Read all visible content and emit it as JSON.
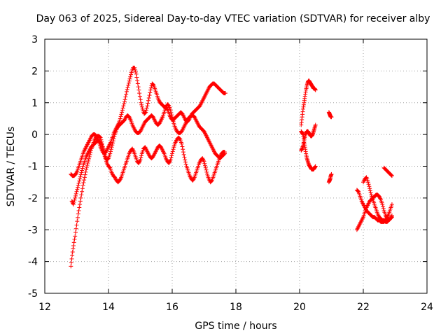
{
  "chart_data": {
    "type": "scatter",
    "title": "Day 063 of 2025, Sidereal Day-to-day VTEC variation (SDTVAR) for receiver alby",
    "xlabel": "GPS time / hours",
    "ylabel": "SDTVAR / TECUs",
    "xlim": [
      12,
      24
    ],
    "ylim": [
      -5,
      3
    ],
    "xticks": [
      12,
      14,
      16,
      18,
      20,
      22,
      24
    ],
    "yticks": [
      -5,
      -4,
      -3,
      -2,
      -1,
      0,
      1,
      2,
      3
    ],
    "grid": true,
    "marker": "+",
    "series_color": "#ff0000",
    "series": [
      {
        "name": "SDTVAR",
        "segments": [
          {
            "x": [
              12.82,
              12.86,
              12.9,
              12.95,
              13.0,
              13.05,
              13.1,
              13.15,
              13.2,
              13.25,
              13.3,
              13.35,
              13.4,
              13.45,
              13.5,
              13.55,
              13.6,
              13.65,
              13.7,
              13.75,
              13.8,
              13.85,
              13.9,
              13.95,
              14.0,
              14.05,
              14.1,
              14.15,
              14.2,
              14.25,
              14.3,
              14.35,
              14.4,
              14.45,
              14.5,
              14.55,
              14.6,
              14.65,
              14.7,
              14.75,
              14.8,
              14.85,
              14.9,
              14.95,
              15.0,
              15.05,
              15.1,
              15.15,
              15.2,
              15.25,
              15.3,
              15.35,
              15.4,
              15.45,
              15.5,
              15.55,
              15.6,
              15.65,
              15.7,
              15.75,
              15.8,
              15.85,
              15.9,
              15.95,
              16.0,
              16.05,
              16.1,
              16.15,
              16.2,
              16.25,
              16.3,
              16.35,
              16.4,
              16.45,
              16.5,
              16.55,
              16.6,
              16.65,
              16.7,
              16.75,
              16.8,
              16.85,
              16.9,
              16.95,
              17.0,
              17.05,
              17.1,
              17.15,
              17.2,
              17.25,
              17.3,
              17.35,
              17.4,
              17.45,
              17.5,
              17.55,
              17.6,
              17.65
            ],
            "y": [
              -4.15,
              -3.8,
              -3.5,
              -3.2,
              -2.85,
              -2.5,
              -2.2,
              -1.9,
              -1.6,
              -1.35,
              -1.1,
              -0.9,
              -0.7,
              -0.5,
              -0.35,
              -0.2,
              -0.1,
              -0.05,
              -0.05,
              -0.1,
              -0.3,
              -0.55,
              -0.75,
              -0.9,
              -1.0,
              -1.05,
              -1.2,
              -1.3,
              -1.35,
              -1.45,
              -1.5,
              -1.45,
              -1.35,
              -1.2,
              -1.05,
              -0.9,
              -0.75,
              -0.6,
              -0.5,
              -0.45,
              -0.55,
              -0.7,
              -0.85,
              -0.9,
              -0.8,
              -0.6,
              -0.45,
              -0.4,
              -0.5,
              -0.6,
              -0.7,
              -0.75,
              -0.7,
              -0.6,
              -0.5,
              -0.4,
              -0.35,
              -0.4,
              -0.5,
              -0.6,
              -0.75,
              -0.85,
              -0.9,
              -0.8,
              -0.6,
              -0.4,
              -0.25,
              -0.15,
              -0.1,
              -0.15,
              -0.3,
              -0.55,
              -0.8,
              -1.0,
              -1.15,
              -1.3,
              -1.4,
              -1.45,
              -1.35,
              -1.2,
              -1.05,
              -0.9,
              -0.8,
              -0.75,
              -0.85,
              -1.05,
              -1.25,
              -1.4,
              -1.5,
              -1.45,
              -1.3,
              -1.15,
              -1.0,
              -0.85,
              -0.7,
              -0.6,
              -0.55,
              -0.55
            ]
          },
          {
            "x": [
              12.82,
              12.87,
              12.92,
              12.97,
              13.02,
              13.07,
              13.12,
              13.17,
              13.22,
              13.27,
              13.32,
              13.37,
              13.42,
              13.47,
              13.52,
              13.57,
              13.62,
              13.67,
              13.72,
              13.77,
              13.82,
              13.87,
              13.92,
              13.97,
              14.02,
              14.07,
              14.12,
              14.17,
              14.22,
              14.27,
              14.32,
              14.37,
              14.42,
              14.47,
              14.52,
              14.57,
              14.62,
              14.67,
              14.72,
              14.77,
              14.82,
              14.87,
              14.92,
              14.97,
              15.02,
              15.07,
              15.12,
              15.17,
              15.22,
              15.27,
              15.32,
              15.37,
              15.42,
              15.47,
              15.52,
              15.57,
              15.62,
              15.67,
              15.72,
              15.77,
              15.82,
              15.87,
              15.92,
              15.97,
              16.02,
              16.07,
              16.12,
              16.17,
              16.22,
              16.27,
              16.32,
              16.37,
              16.42,
              16.47,
              16.52,
              16.57,
              16.62,
              16.67,
              16.72,
              16.77,
              16.82,
              16.87,
              16.92,
              16.97,
              17.02,
              17.07,
              17.12,
              17.17,
              17.22,
              17.27,
              17.32,
              17.37,
              17.42,
              17.47,
              17.52,
              17.57,
              17.62,
              17.67
            ],
            "y": [
              -1.25,
              -1.3,
              -1.3,
              -1.25,
              -1.15,
              -1.0,
              -0.85,
              -0.7,
              -0.55,
              -0.45,
              -0.35,
              -0.25,
              -0.15,
              -0.05,
              0.0,
              0.0,
              -0.05,
              -0.15,
              -0.3,
              -0.45,
              -0.55,
              -0.6,
              -0.55,
              -0.45,
              -0.35,
              -0.25,
              -0.1,
              0.05,
              0.15,
              0.25,
              0.35,
              0.5,
              0.7,
              0.9,
              1.1,
              1.35,
              1.55,
              1.75,
              1.95,
              2.1,
              2.1,
              1.9,
              1.6,
              1.3,
              1.0,
              0.8,
              0.65,
              0.7,
              0.9,
              1.15,
              1.4,
              1.6,
              1.55,
              1.4,
              1.25,
              1.1,
              1.0,
              0.95,
              0.9,
              0.85,
              0.85,
              0.75,
              0.6,
              0.5,
              0.45,
              0.5,
              0.55,
              0.6,
              0.65,
              0.7,
              0.65,
              0.55,
              0.45,
              0.4,
              0.45,
              0.55,
              0.65,
              0.7,
              0.75,
              0.8,
              0.85,
              0.9,
              1.0,
              1.1,
              1.2,
              1.3,
              1.4,
              1.5,
              1.55,
              1.6,
              1.6,
              1.55,
              1.5,
              1.45,
              1.4,
              1.35,
              1.3,
              1.3
            ]
          },
          {
            "x": [
              12.85,
              12.9,
              12.95,
              13.0,
              13.05,
              13.1,
              13.15,
              13.2,
              13.25,
              13.3,
              13.35,
              13.4,
              13.45,
              13.5,
              13.55,
              13.6,
              13.65,
              13.7,
              13.75,
              13.8,
              13.85,
              13.9,
              13.95,
              14.0,
              14.05,
              14.1,
              14.15,
              14.2,
              14.25,
              14.3,
              14.35,
              14.4,
              14.45,
              14.5,
              14.55,
              14.6,
              14.65,
              14.7,
              14.75,
              14.8,
              14.85,
              14.9,
              14.95,
              15.0,
              15.05,
              15.1,
              15.15,
              15.2,
              15.25,
              15.3,
              15.35,
              15.4,
              15.45,
              15.5,
              15.55,
              15.6,
              15.65,
              15.7,
              15.75,
              15.8,
              15.85,
              15.9,
              15.95,
              16.0,
              16.05,
              16.1,
              16.15,
              16.2,
              16.25,
              16.3,
              16.35,
              16.4,
              16.45,
              16.5,
              16.55,
              16.6,
              16.65,
              16.7,
              16.75,
              16.8,
              16.85,
              16.9,
              16.95,
              17.0,
              17.05,
              17.1,
              17.15,
              17.2,
              17.25,
              17.3,
              17.35,
              17.4,
              17.45,
              17.5,
              17.55,
              17.6,
              17.65
            ],
            "y": [
              -2.1,
              -2.2,
              -2.0,
              -1.8,
              -1.6,
              -1.4,
              -1.2,
              -1.0,
              -0.85,
              -0.7,
              -0.6,
              -0.5,
              -0.4,
              -0.35,
              -0.3,
              -0.25,
              -0.2,
              -0.2,
              -0.25,
              -0.35,
              -0.5,
              -0.7,
              -0.8,
              -0.75,
              -0.6,
              -0.4,
              -0.2,
              0.0,
              0.15,
              0.25,
              0.3,
              0.35,
              0.4,
              0.45,
              0.55,
              0.6,
              0.55,
              0.45,
              0.3,
              0.2,
              0.1,
              0.05,
              0.05,
              0.1,
              0.2,
              0.3,
              0.4,
              0.45,
              0.5,
              0.55,
              0.6,
              0.55,
              0.45,
              0.35,
              0.3,
              0.35,
              0.45,
              0.55,
              0.7,
              0.85,
              0.95,
              0.9,
              0.75,
              0.55,
              0.35,
              0.2,
              0.1,
              0.05,
              0.05,
              0.1,
              0.2,
              0.3,
              0.4,
              0.5,
              0.55,
              0.6,
              0.6,
              0.55,
              0.45,
              0.35,
              0.25,
              0.2,
              0.15,
              0.1,
              0.0,
              -0.1,
              -0.2,
              -0.3,
              -0.4,
              -0.5,
              -0.6,
              -0.65,
              -0.7,
              -0.75,
              -0.7,
              -0.65,
              -0.6
            ]
          },
          {
            "x": [
              20.05,
              20.08,
              20.11,
              20.14,
              20.17,
              20.2,
              20.23,
              20.26,
              20.29,
              20.32,
              20.35,
              20.38,
              20.41,
              20.44,
              20.47,
              20.5
            ],
            "y": [
              0.3,
              0.55,
              0.8,
              1.0,
              1.2,
              1.4,
              1.55,
              1.65,
              1.7,
              1.65,
              1.6,
              1.55,
              1.5,
              1.45,
              1.45,
              1.4
            ]
          },
          {
            "x": [
              20.05,
              20.08,
              20.11,
              20.14,
              20.17,
              20.2,
              20.23,
              20.26,
              20.29,
              20.32,
              20.35,
              20.38,
              20.41,
              20.44,
              20.47,
              20.5
            ],
            "y": [
              0.1,
              0.05,
              0.0,
              -0.2,
              -0.4,
              -0.6,
              -0.75,
              -0.85,
              -0.95,
              -1.0,
              -1.05,
              -1.1,
              -1.1,
              -1.1,
              -1.05,
              -1.0
            ]
          },
          {
            "x": [
              20.05,
              20.08,
              20.11,
              20.14,
              20.17,
              20.2,
              20.23,
              20.26,
              20.29,
              20.32,
              20.35,
              20.38,
              20.41,
              20.44,
              20.47,
              20.5
            ],
            "y": [
              -0.5,
              -0.45,
              -0.35,
              -0.2,
              -0.05,
              0.05,
              0.1,
              0.1,
              0.05,
              0.0,
              -0.05,
              -0.05,
              0.0,
              0.1,
              0.2,
              0.3
            ]
          },
          {
            "x": [
              20.92,
              20.94,
              20.96,
              20.98,
              21.0
            ],
            "y": [
              0.7,
              0.65,
              0.6,
              0.55,
              0.55
            ]
          },
          {
            "x": [
              20.92,
              20.94,
              20.96,
              20.98,
              21.0
            ],
            "y": [
              -1.5,
              -1.45,
              -1.4,
              -1.3,
              -1.25
            ]
          },
          {
            "x": [
              21.8,
              21.85,
              21.9,
              21.95,
              22.0,
              22.05,
              22.1,
              22.15,
              22.2,
              22.25,
              22.3,
              22.35,
              22.4,
              22.45,
              22.5,
              22.55,
              22.6,
              22.65,
              22.7,
              22.75,
              22.8,
              22.85,
              22.9
            ],
            "y": [
              -3.0,
              -2.9,
              -2.8,
              -2.7,
              -2.6,
              -2.45,
              -2.3,
              -2.2,
              -2.1,
              -2.05,
              -2.0,
              -1.95,
              -1.9,
              -1.9,
              -1.95,
              -2.05,
              -2.2,
              -2.4,
              -2.55,
              -2.65,
              -2.7,
              -2.65,
              -2.55
            ]
          },
          {
            "x": [
              21.8,
              21.85,
              21.9,
              21.95,
              22.0,
              22.05,
              22.1,
              22.15,
              22.2,
              22.25,
              22.3,
              22.35,
              22.4,
              22.45,
              22.5,
              22.55,
              22.6,
              22.65,
              22.7,
              22.75,
              22.8,
              22.85,
              22.9
            ],
            "y": [
              -1.75,
              -1.8,
              -1.95,
              -2.1,
              -2.2,
              -2.3,
              -2.4,
              -2.45,
              -2.5,
              -2.55,
              -2.6,
              -2.6,
              -2.65,
              -2.7,
              -2.7,
              -2.75,
              -2.75,
              -2.75,
              -2.7,
              -2.6,
              -2.5,
              -2.35,
              -2.2
            ]
          },
          {
            "x": [
              22.0,
              22.05,
              22.1,
              22.15,
              22.2,
              22.25,
              22.3,
              22.35,
              22.4,
              22.45,
              22.5,
              22.55,
              22.6,
              22.65,
              22.7,
              22.75,
              22.8,
              22.85,
              22.9
            ],
            "y": [
              -1.5,
              -1.4,
              -1.35,
              -1.5,
              -1.7,
              -1.9,
              -2.05,
              -2.2,
              -2.35,
              -2.5,
              -2.6,
              -2.65,
              -2.7,
              -2.7,
              -2.75,
              -2.75,
              -2.7,
              -2.65,
              -2.6
            ]
          },
          {
            "x": [
              22.65,
              22.7,
              22.75,
              22.8,
              22.85,
              22.9
            ],
            "y": [
              -1.05,
              -1.1,
              -1.15,
              -1.2,
              -1.25,
              -1.3
            ]
          }
        ]
      }
    ]
  }
}
